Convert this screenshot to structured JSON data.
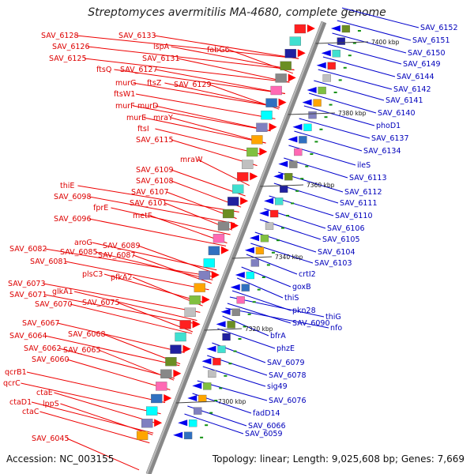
{
  "title": "Streptomyces avermitilis MA-4680, complete genome",
  "footer": {
    "accession": "Accession: NC_003155",
    "summary": "Topology: linear; Length: 9,025,608 bp; Genes: 7,669"
  },
  "colors": {
    "left_label": "#dd0000",
    "right_label": "#0000bb",
    "axis": "#888888"
  },
  "kbp_marks": [
    "7400 kbp",
    "7380 kbp",
    "7360 kbp",
    "7340 kbp",
    "7320 kbp",
    "7300 kbp"
  ],
  "left_labels": [
    "SAV_6128",
    "SAV_6133",
    "SAV_6126",
    "lspA",
    "fabG6",
    "SAV_6125",
    "SAV_6131",
    "ftsQ",
    "SAV_6127",
    "murG",
    "ftsZ",
    "SAV_6129",
    "ftsW1",
    "murF",
    "murD",
    "murE",
    "mraY",
    "ftsI",
    "SAV_6115",
    "mraW",
    "SAV_6109",
    "SAV_6108",
    "thiE",
    "SAV_6107",
    "SAV_6098",
    "fprE",
    "SAV_6101",
    "SAV_6096",
    "metF",
    "aroG",
    "SAV_6089",
    "SAV_6082",
    "SAV_6085",
    "SAV_6087",
    "SAV_6081",
    "plsC3",
    "pfkA2",
    "SAV_6073",
    "glkA1",
    "SAV_6071",
    "SAV_6075",
    "SAV_6070",
    "SAV_6067",
    "SAV_6068",
    "SAV_6064",
    "SAV_6062",
    "SAV_6065",
    "SAV_6060",
    "qcrB1",
    "qcrC",
    "ctaE",
    "ctaD1",
    "lppS",
    "ctaC",
    "SAV_6045"
  ],
  "right_labels": [
    "SAV_6152",
    "SAV_6151",
    "SAV_6150",
    "SAV_6149",
    "SAV_6144",
    "SAV_6142",
    "SAV_6141",
    "SAV_6140",
    "phoD1",
    "SAV_6137",
    "SAV_6134",
    "ileS",
    "SAV_6113",
    "SAV_6112",
    "SAV_6111",
    "SAV_6110",
    "SAV_6106",
    "SAV_6105",
    "SAV_6104",
    "SAV_6103",
    "crtI2",
    "goxB",
    "thiS",
    "pkn28",
    "thiG",
    "SAV_6090",
    "nfo",
    "bfrA",
    "phzE",
    "SAV_6079",
    "SAV_6078",
    "sig49",
    "SAV_6076",
    "fadD14",
    "SAV_6066",
    "SAV_6059"
  ]
}
